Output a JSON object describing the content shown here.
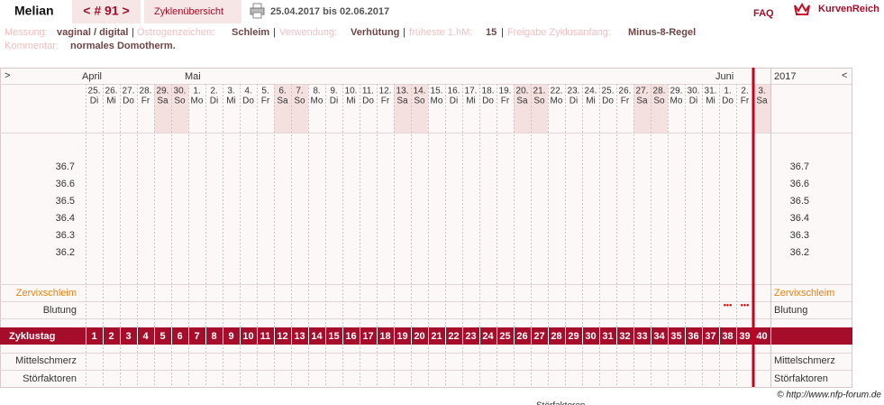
{
  "header": {
    "name": "Melian",
    "cycle": "< # 91 >",
    "tab": "Zyklenübersicht",
    "range": "25.04.2017 bis 02.06.2017",
    "faq": "FAQ",
    "logo": "KurvenReich"
  },
  "info": {
    "fields": [
      {
        "label": "Messung:",
        "value": "vaginal / digital"
      },
      {
        "label": "Östrogenzeichen:",
        "value": "Schleim"
      },
      {
        "label": "Verwendung:",
        "value": "Verhütung"
      },
      {
        "label": "früheste 1.hM:",
        "value": "15"
      },
      {
        "label": "Freigabe Zyklusanfang:",
        "value": "Minus-8-Regel"
      }
    ],
    "comment": {
      "label": "Kommentar:",
      "value": "normales Domotherm."
    }
  },
  "chart": {
    "nav_prev": ">",
    "nav_next": "<",
    "year": "2017",
    "days": [
      {
        "date": "25.",
        "weekday": "Di",
        "month": "April",
        "cycle_day": 1
      },
      {
        "date": "26.",
        "weekday": "Mi",
        "cycle_day": 2
      },
      {
        "date": "27.",
        "weekday": "Do",
        "cycle_day": 3
      },
      {
        "date": "28.",
        "weekday": "Fr",
        "cycle_day": 4
      },
      {
        "date": "29.",
        "weekday": "Sa",
        "cycle_day": 5
      },
      {
        "date": "30.",
        "weekday": "So",
        "cycle_day": 6
      },
      {
        "date": "1.",
        "weekday": "Mo",
        "month": "Mai",
        "cycle_day": 7
      },
      {
        "date": "2.",
        "weekday": "Di",
        "cycle_day": 8
      },
      {
        "date": "3.",
        "weekday": "Mi",
        "cycle_day": 9
      },
      {
        "date": "4.",
        "weekday": "Do",
        "cycle_day": 10
      },
      {
        "date": "5.",
        "weekday": "Fr",
        "cycle_day": 11
      },
      {
        "date": "6.",
        "weekday": "Sa",
        "cycle_day": 12
      },
      {
        "date": "7.",
        "weekday": "So",
        "cycle_day": 13
      },
      {
        "date": "8.",
        "weekday": "Mo",
        "cycle_day": 14
      },
      {
        "date": "9.",
        "weekday": "Di",
        "cycle_day": 15
      },
      {
        "date": "10.",
        "weekday": "Mi",
        "cycle_day": 16
      },
      {
        "date": "11.",
        "weekday": "Do",
        "cycle_day": 17
      },
      {
        "date": "12.",
        "weekday": "Fr",
        "cycle_day": 18
      },
      {
        "date": "13.",
        "weekday": "Sa",
        "cycle_day": 19
      },
      {
        "date": "14.",
        "weekday": "So",
        "cycle_day": 20
      },
      {
        "date": "15.",
        "weekday": "Mo",
        "cycle_day": 21
      },
      {
        "date": "16.",
        "weekday": "Di",
        "cycle_day": 22
      },
      {
        "date": "17.",
        "weekday": "Mi",
        "cycle_day": 23
      },
      {
        "date": "18.",
        "weekday": "Do",
        "cycle_day": 24
      },
      {
        "date": "19.",
        "weekday": "Fr",
        "cycle_day": 25
      },
      {
        "date": "20.",
        "weekday": "Sa",
        "cycle_day": 26
      },
      {
        "date": "21.",
        "weekday": "So",
        "cycle_day": 27
      },
      {
        "date": "22.",
        "weekday": "Mo",
        "cycle_day": 28
      },
      {
        "date": "23.",
        "weekday": "Di",
        "cycle_day": 29
      },
      {
        "date": "24.",
        "weekday": "Mi",
        "cycle_day": 30
      },
      {
        "date": "25.",
        "weekday": "Do",
        "cycle_day": 31
      },
      {
        "date": "26.",
        "weekday": "Fr",
        "cycle_day": 32
      },
      {
        "date": "27.",
        "weekday": "Sa",
        "cycle_day": 33
      },
      {
        "date": "28.",
        "weekday": "So",
        "cycle_day": 34
      },
      {
        "date": "29.",
        "weekday": "Mo",
        "cycle_day": 35
      },
      {
        "date": "30.",
        "weekday": "Di",
        "cycle_day": 36
      },
      {
        "date": "31.",
        "weekday": "Mi",
        "cycle_day": 37
      },
      {
        "date": "1.",
        "weekday": "Do",
        "month": "Juni",
        "cycle_day": 38
      },
      {
        "date": "2.",
        "weekday": "Fr",
        "cycle_day": 39
      },
      {
        "date": "3.",
        "weekday": "Sa",
        "cycle_day": 40
      }
    ],
    "temperatures": [
      36.7,
      36.6,
      36.5,
      36.4,
      36.3,
      36.2
    ],
    "rows": {
      "cervix": "Zervixschleim",
      "bleeding": "Blutung",
      "cycle_day": "Zyklustag",
      "pain": "Mittelschmerz",
      "disturbance": "Störfaktoren"
    },
    "bleeding_marks": [
      {
        "cycle_day": 38,
        "mark": "•••"
      },
      {
        "cycle_day": 39,
        "mark": "•••"
      }
    ],
    "current_cycle_day": 39
  },
  "footer": {
    "copyright": "© http://www.nfp-forum.de",
    "cut_label": "Störfaktoren"
  }
}
